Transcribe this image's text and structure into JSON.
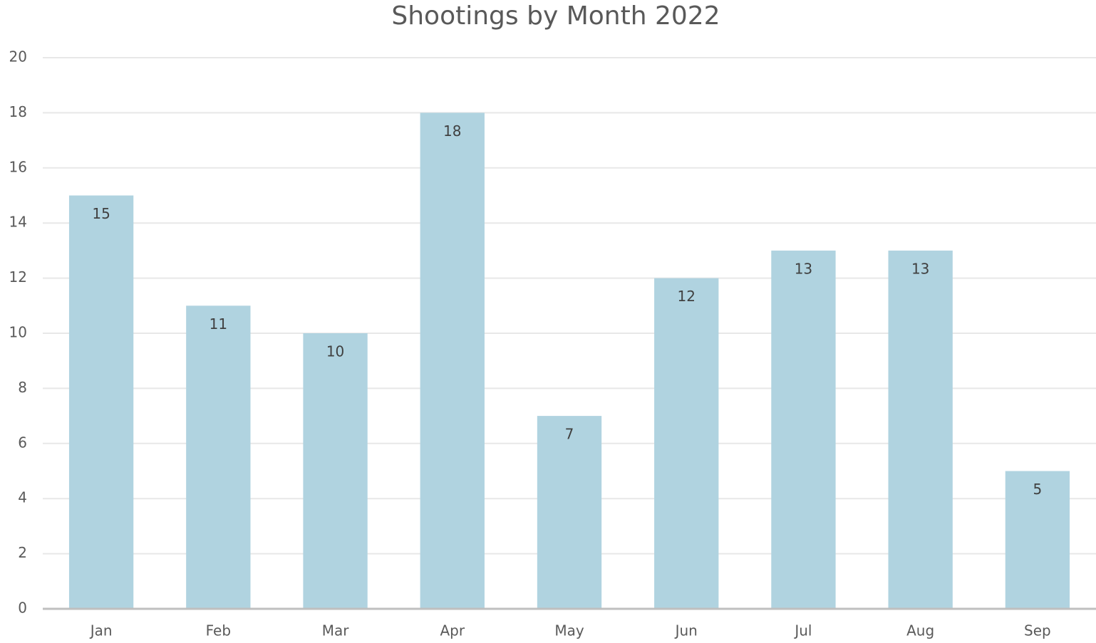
{
  "chart_data": {
    "type": "bar",
    "title": "Shootings by Month 2022",
    "categories": [
      "Jan",
      "Feb",
      "Mar",
      "Apr",
      "May",
      "Jun",
      "Jul",
      "Aug",
      "Sep"
    ],
    "values": [
      15,
      11,
      10,
      18,
      7,
      12,
      13,
      13,
      5
    ],
    "color": "#b0d3e0",
    "ylim": [
      0,
      20
    ],
    "yticks": [
      0,
      2,
      4,
      6,
      8,
      10,
      12,
      14,
      16,
      18,
      20
    ],
    "grid": true,
    "data_labels": true
  }
}
